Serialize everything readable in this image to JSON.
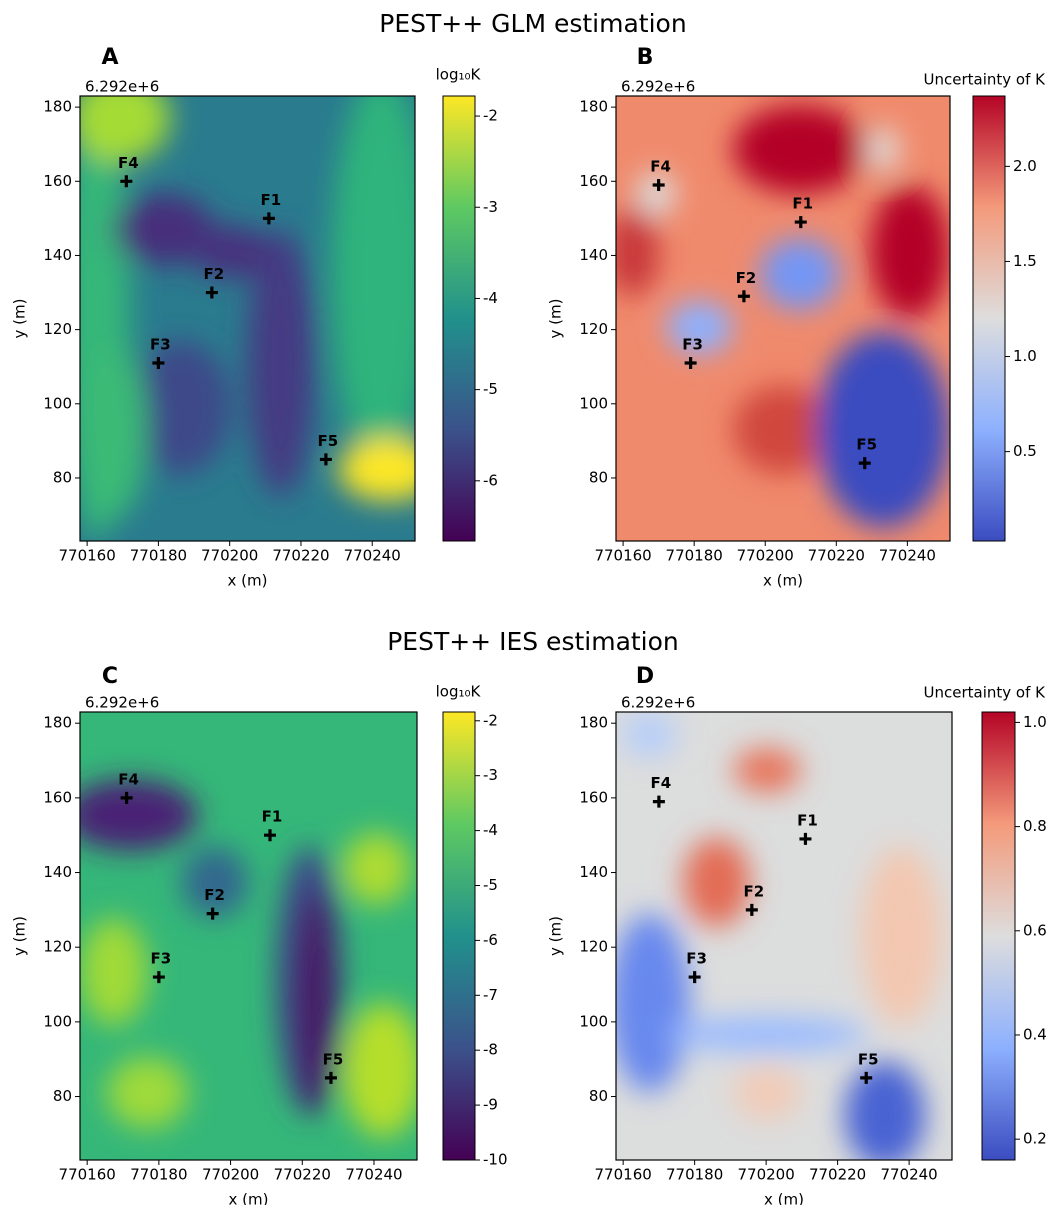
{
  "figure_titles": [
    "PEST++ GLM estimation",
    "PEST++ IES estimation"
  ],
  "chart_data": [
    {
      "type": "scatter",
      "panel_label": "A",
      "offset_label": "6.292e+6",
      "x_label": "x (m)",
      "y_label": "y (m)",
      "xlim": [
        770158,
        770252
      ],
      "ylim": [
        63,
        183
      ],
      "xticks": [
        770160,
        770180,
        770200,
        770220,
        770240
      ],
      "yticks": [
        80,
        100,
        120,
        140,
        160,
        180
      ],
      "point_names": [
        "F1",
        "F2",
        "F3",
        "F4",
        "F5"
      ],
      "x": [
        770211,
        770195,
        770180,
        770171,
        770227
      ],
      "y": [
        150,
        130,
        111,
        160,
        85
      ],
      "marker_color": "#000000",
      "colorbar": {
        "label": "log₁₀K",
        "lim": [
          -6.66,
          -1.78
        ],
        "ticks": [
          -6,
          -5,
          -4,
          -3,
          -2
        ],
        "colormap": [
          "#440154",
          "#3b528b",
          "#21918c",
          "#5ec962",
          "#fde725"
        ]
      }
    },
    {
      "type": "scatter",
      "panel_label": "B",
      "offset_label": "6.292e+6",
      "x_label": "x (m)",
      "y_label": "y (m)",
      "xlim": [
        770158,
        770252
      ],
      "ylim": [
        63,
        183
      ],
      "xticks": [
        770160,
        770180,
        770200,
        770220,
        770240
      ],
      "yticks": [
        80,
        100,
        120,
        140,
        160,
        180
      ],
      "point_names": [
        "F1",
        "F2",
        "F3",
        "F4",
        "F5"
      ],
      "x": [
        770210,
        770194,
        770179,
        770170,
        770228
      ],
      "y": [
        149,
        129,
        111,
        159,
        84
      ],
      "marker_color": "#000000",
      "colorbar": {
        "label": "Uncertainty of K",
        "lim": [
          0.03,
          2.37
        ],
        "ticks": [
          0.5,
          {
            "value": 1,
            "label": "1.0"
          },
          1.5,
          {
            "value": 2,
            "label": "2.0"
          }
        ],
        "colormap": [
          "#3b4cc0",
          "#8db0fe",
          "#dddddd",
          "#f49a7b",
          "#b40426"
        ]
      }
    },
    {
      "type": "scatter",
      "panel_label": "C",
      "offset_label": "6.292e+6",
      "x_label": "x (m)",
      "y_label": "y (m)",
      "xlim": [
        770158,
        770252
      ],
      "ylim": [
        63,
        183
      ],
      "xticks": [
        770160,
        770180,
        770200,
        770220,
        770240
      ],
      "yticks": [
        80,
        100,
        120,
        140,
        160,
        180
      ],
      "point_names": [
        "F1",
        "F2",
        "F3",
        "F4",
        "F5"
      ],
      "x": [
        770211,
        770195,
        770180,
        770171,
        770228
      ],
      "y": [
        150,
        129,
        112,
        160,
        85
      ],
      "marker_color": "#000000",
      "colorbar": {
        "label": "log₁₀K",
        "lim": [
          -10,
          -1.84
        ],
        "ticks": [
          -10,
          -9,
          -8,
          -7,
          -6,
          -5,
          -4,
          -3,
          -2
        ],
        "colormap": [
          "#440154",
          "#3b528b",
          "#21918c",
          "#5ec962",
          "#fde725"
        ]
      }
    },
    {
      "type": "scatter",
      "panel_label": "D",
      "offset_label": "6.292e+6",
      "x_label": "x (m)",
      "y_label": "y (m)",
      "xlim": [
        770158,
        770252
      ],
      "ylim": [
        63,
        183
      ],
      "xticks": [
        770160,
        770180,
        770200,
        770220,
        770240
      ],
      "yticks": [
        80,
        100,
        120,
        140,
        160,
        180
      ],
      "point_names": [
        "F1",
        "F2",
        "F3",
        "F4",
        "F5"
      ],
      "x": [
        770211,
        770196,
        770180,
        770170,
        770228
      ],
      "y": [
        149,
        130,
        112,
        159,
        85
      ],
      "marker_color": "#000000",
      "colorbar": {
        "label": "Uncertainty of K",
        "lim": [
          0.16,
          1.02
        ],
        "ticks": [
          0.2,
          0.4,
          0.6,
          0.8,
          {
            "value": 1,
            "label": "1.0"
          }
        ],
        "colormap": [
          "#3b4cc0",
          "#8db0fe",
          "#dddddd",
          "#f49a7b",
          "#b40426"
        ]
      }
    }
  ]
}
